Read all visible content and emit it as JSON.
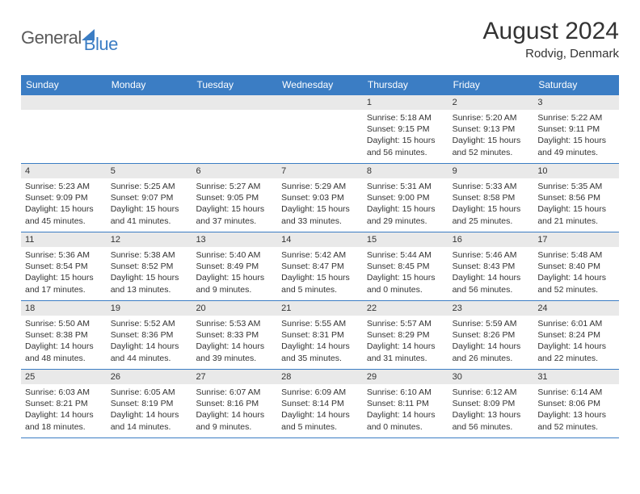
{
  "logo": {
    "word1": "General",
    "word2": "Blue"
  },
  "title": "August 2024",
  "location": "Rodvig, Denmark",
  "colors": {
    "brand": "#3b7dc4",
    "daynum_bg": "#e9e9e9",
    "text": "#333333",
    "white": "#ffffff"
  },
  "dayHeaders": [
    "Sunday",
    "Monday",
    "Tuesday",
    "Wednesday",
    "Thursday",
    "Friday",
    "Saturday"
  ],
  "weeks": [
    [
      null,
      null,
      null,
      null,
      {
        "n": "1",
        "sr": "5:18 AM",
        "ss": "9:15 PM",
        "dl": "15 hours and 56 minutes."
      },
      {
        "n": "2",
        "sr": "5:20 AM",
        "ss": "9:13 PM",
        "dl": "15 hours and 52 minutes."
      },
      {
        "n": "3",
        "sr": "5:22 AM",
        "ss": "9:11 PM",
        "dl": "15 hours and 49 minutes."
      }
    ],
    [
      {
        "n": "4",
        "sr": "5:23 AM",
        "ss": "9:09 PM",
        "dl": "15 hours and 45 minutes."
      },
      {
        "n": "5",
        "sr": "5:25 AM",
        "ss": "9:07 PM",
        "dl": "15 hours and 41 minutes."
      },
      {
        "n": "6",
        "sr": "5:27 AM",
        "ss": "9:05 PM",
        "dl": "15 hours and 37 minutes."
      },
      {
        "n": "7",
        "sr": "5:29 AM",
        "ss": "9:03 PM",
        "dl": "15 hours and 33 minutes."
      },
      {
        "n": "8",
        "sr": "5:31 AM",
        "ss": "9:00 PM",
        "dl": "15 hours and 29 minutes."
      },
      {
        "n": "9",
        "sr": "5:33 AM",
        "ss": "8:58 PM",
        "dl": "15 hours and 25 minutes."
      },
      {
        "n": "10",
        "sr": "5:35 AM",
        "ss": "8:56 PM",
        "dl": "15 hours and 21 minutes."
      }
    ],
    [
      {
        "n": "11",
        "sr": "5:36 AM",
        "ss": "8:54 PM",
        "dl": "15 hours and 17 minutes."
      },
      {
        "n": "12",
        "sr": "5:38 AM",
        "ss": "8:52 PM",
        "dl": "15 hours and 13 minutes."
      },
      {
        "n": "13",
        "sr": "5:40 AM",
        "ss": "8:49 PM",
        "dl": "15 hours and 9 minutes."
      },
      {
        "n": "14",
        "sr": "5:42 AM",
        "ss": "8:47 PM",
        "dl": "15 hours and 5 minutes."
      },
      {
        "n": "15",
        "sr": "5:44 AM",
        "ss": "8:45 PM",
        "dl": "15 hours and 0 minutes."
      },
      {
        "n": "16",
        "sr": "5:46 AM",
        "ss": "8:43 PM",
        "dl": "14 hours and 56 minutes."
      },
      {
        "n": "17",
        "sr": "5:48 AM",
        "ss": "8:40 PM",
        "dl": "14 hours and 52 minutes."
      }
    ],
    [
      {
        "n": "18",
        "sr": "5:50 AM",
        "ss": "8:38 PM",
        "dl": "14 hours and 48 minutes."
      },
      {
        "n": "19",
        "sr": "5:52 AM",
        "ss": "8:36 PM",
        "dl": "14 hours and 44 minutes."
      },
      {
        "n": "20",
        "sr": "5:53 AM",
        "ss": "8:33 PM",
        "dl": "14 hours and 39 minutes."
      },
      {
        "n": "21",
        "sr": "5:55 AM",
        "ss": "8:31 PM",
        "dl": "14 hours and 35 minutes."
      },
      {
        "n": "22",
        "sr": "5:57 AM",
        "ss": "8:29 PM",
        "dl": "14 hours and 31 minutes."
      },
      {
        "n": "23",
        "sr": "5:59 AM",
        "ss": "8:26 PM",
        "dl": "14 hours and 26 minutes."
      },
      {
        "n": "24",
        "sr": "6:01 AM",
        "ss": "8:24 PM",
        "dl": "14 hours and 22 minutes."
      }
    ],
    [
      {
        "n": "25",
        "sr": "6:03 AM",
        "ss": "8:21 PM",
        "dl": "14 hours and 18 minutes."
      },
      {
        "n": "26",
        "sr": "6:05 AM",
        "ss": "8:19 PM",
        "dl": "14 hours and 14 minutes."
      },
      {
        "n": "27",
        "sr": "6:07 AM",
        "ss": "8:16 PM",
        "dl": "14 hours and 9 minutes."
      },
      {
        "n": "28",
        "sr": "6:09 AM",
        "ss": "8:14 PM",
        "dl": "14 hours and 5 minutes."
      },
      {
        "n": "29",
        "sr": "6:10 AM",
        "ss": "8:11 PM",
        "dl": "14 hours and 0 minutes."
      },
      {
        "n": "30",
        "sr": "6:12 AM",
        "ss": "8:09 PM",
        "dl": "13 hours and 56 minutes."
      },
      {
        "n": "31",
        "sr": "6:14 AM",
        "ss": "8:06 PM",
        "dl": "13 hours and 52 minutes."
      }
    ]
  ],
  "labels": {
    "sunrise": "Sunrise: ",
    "sunset": "Sunset: ",
    "daylight": "Daylight: "
  }
}
